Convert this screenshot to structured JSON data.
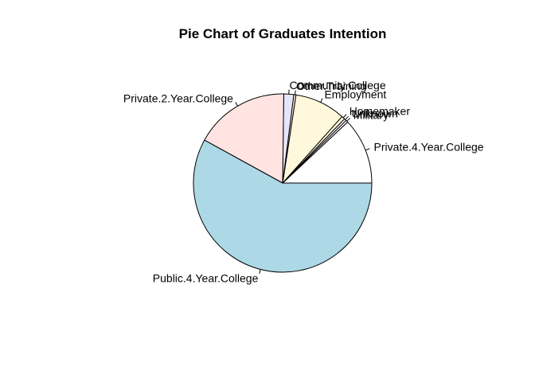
{
  "chart_data": {
    "type": "pie",
    "title": "Pie Chart of Graduates Intention",
    "categories": [
      "Private.4.Year.College",
      "Military",
      "Unknown",
      "Homemaker",
      "Employment",
      "Other.Training",
      "Community.College",
      "Private.2.Year.College",
      "Public.4.Year.College"
    ],
    "values": [
      12.0,
      0.4,
      0.4,
      0.6,
      9.2,
      0.4,
      1.8,
      17.2,
      58.0
    ],
    "colors": [
      "#ffffff",
      "#f0f0ff",
      "#fff0f0",
      "#fff8dc",
      "#fff8dc",
      "#ffe4e1",
      "#e6e6fa",
      "#ffe4e1",
      "#add8e6"
    ],
    "start_angle_deg": 0,
    "direction": "counterclockwise"
  }
}
